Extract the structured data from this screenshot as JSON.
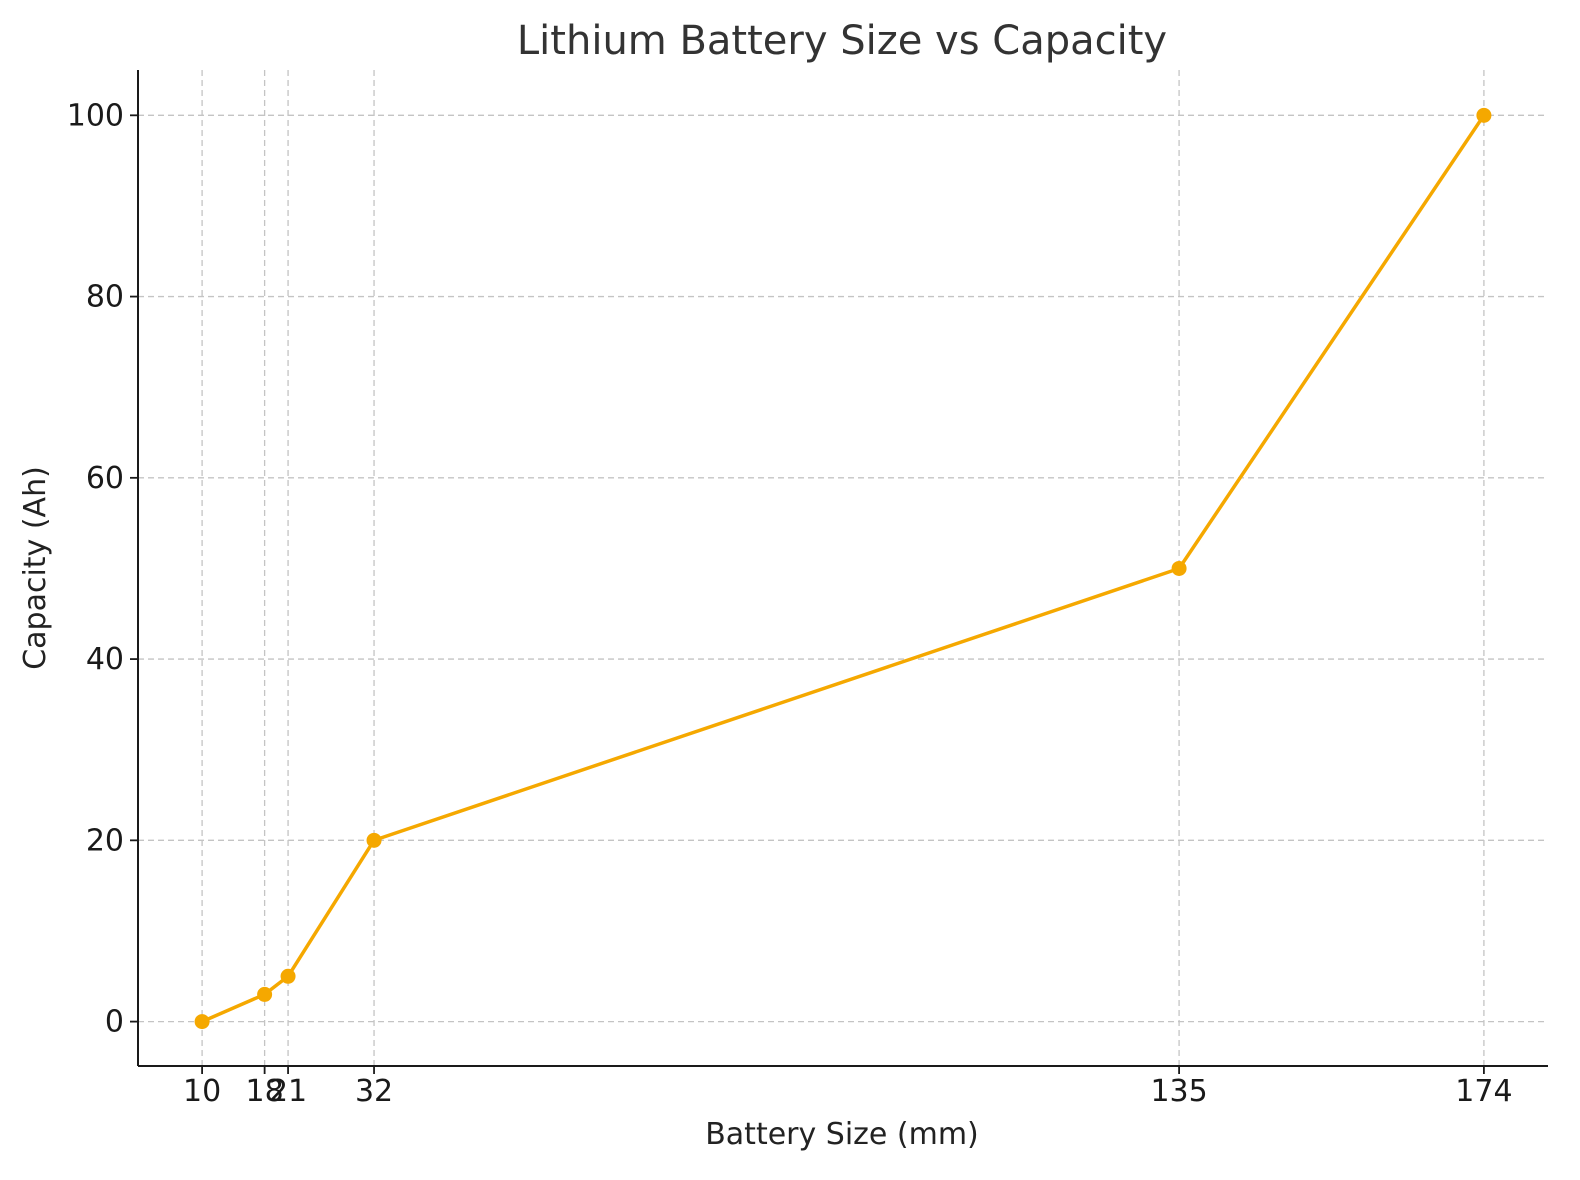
{
  "chart_data": {
    "type": "line",
    "title": "Lithium Battery Size vs Capacity",
    "xlabel": "Battery Size (mm)",
    "ylabel": "Capacity (Ah)",
    "x": [
      10,
      18,
      21,
      32,
      135,
      174
    ],
    "x_tick_labels": [
      "10",
      "18",
      "21",
      "32",
      "135",
      "174"
    ],
    "series": [
      {
        "values": [
          0,
          3,
          5,
          20,
          50,
          100
        ],
        "color": "#F5A800",
        "marker": "circle"
      }
    ],
    "y_ticks": [
      0,
      20,
      40,
      60,
      80,
      100
    ],
    "y_tick_labels": [
      "0",
      "20",
      "40",
      "60",
      "80",
      "100"
    ],
    "xlim": [
      1.8,
      182.2
    ],
    "ylim": [
      -4.9,
      105
    ],
    "grid": true,
    "legend": false
  }
}
